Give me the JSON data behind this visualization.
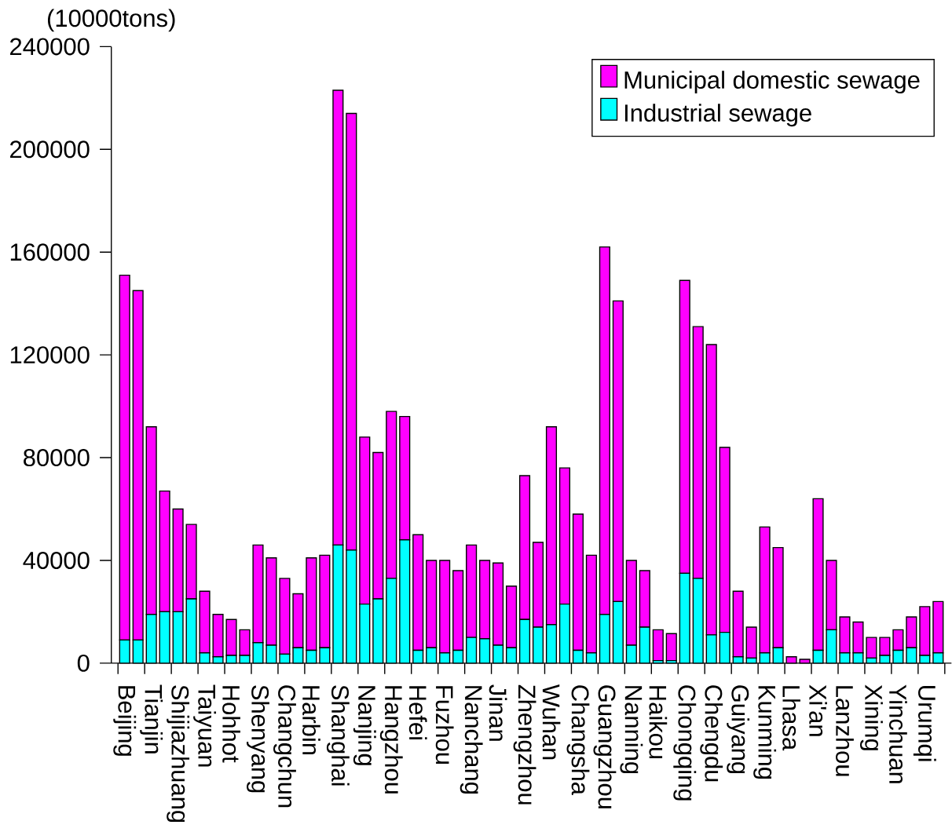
{
  "chart_data": {
    "type": "bar",
    "stacked": true,
    "ylabel": "(10000tons)",
    "categories": [
      "Beijing",
      null,
      "Tianjin",
      null,
      "Shijiazhuang",
      null,
      "Taiyuan",
      null,
      "Hohhot",
      null,
      "Shenyang",
      null,
      "Changchun",
      null,
      "Harbin",
      null,
      "Shanghai",
      null,
      "Nanjing",
      null,
      "Hangzhou",
      null,
      "Hefei",
      null,
      "Fuzhou",
      null,
      "Nanchang",
      null,
      "Jinan",
      null,
      "Zhengzhou",
      null,
      "Wuhan",
      null,
      "Changsha",
      null,
      "Guangzhou",
      null,
      "Nanning",
      null,
      "Haikou",
      null,
      "Chongqing",
      null,
      "Chengdu",
      null,
      "Guiyang",
      null,
      "Kunming",
      null,
      "Lhasa",
      null,
      "Xi'an",
      null,
      "Lanzhou",
      null,
      "Xining",
      null,
      "Yinchuan",
      null,
      "Urumqi",
      null
    ],
    "series": [
      {
        "name": "Industrial sewage",
        "color": "#00ffff",
        "values": [
          9000,
          9000,
          19000,
          20000,
          20000,
          25000,
          4000,
          2500,
          3000,
          3000,
          8000,
          7000,
          3500,
          6000,
          5000,
          6000,
          46000,
          44000,
          23000,
          25000,
          33000,
          48000,
          5000,
          6000,
          4000,
          5000,
          10000,
          9500,
          7000,
          6000,
          17000,
          14000,
          15000,
          23000,
          5000,
          4000,
          19000,
          24000,
          7000,
          14000,
          1000,
          1000,
          35000,
          33000,
          11000,
          12000,
          2500,
          2000,
          4000,
          6000,
          null,
          null,
          5000,
          13000,
          4000,
          4000,
          2000,
          3000,
          5000,
          6000,
          3000,
          4000
        ]
      },
      {
        "name": "Municipal domestic sewage",
        "color": "#ff00ff",
        "values": [
          142000,
          136000,
          73000,
          47000,
          40000,
          29000,
          24000,
          16500,
          14000,
          10000,
          38000,
          34000,
          29500,
          21000,
          36000,
          36000,
          177000,
          170000,
          65000,
          57000,
          65000,
          48000,
          45000,
          34000,
          36000,
          31000,
          36000,
          30500,
          32000,
          24000,
          56000,
          33000,
          77000,
          53000,
          53000,
          38000,
          143000,
          117000,
          33000,
          22000,
          12000,
          10500,
          114000,
          98000,
          113000,
          72000,
          25500,
          12000,
          49000,
          39000,
          2500,
          1500,
          59000,
          27000,
          14000,
          12000,
          8000,
          7000,
          8000,
          12000,
          19000,
          20000
        ]
      }
    ],
    "ylim": [
      0,
      240000
    ],
    "yticks": [
      0,
      40000,
      80000,
      120000,
      160000,
      200000,
      240000
    ],
    "legend": "top right",
    "grid": false
  }
}
